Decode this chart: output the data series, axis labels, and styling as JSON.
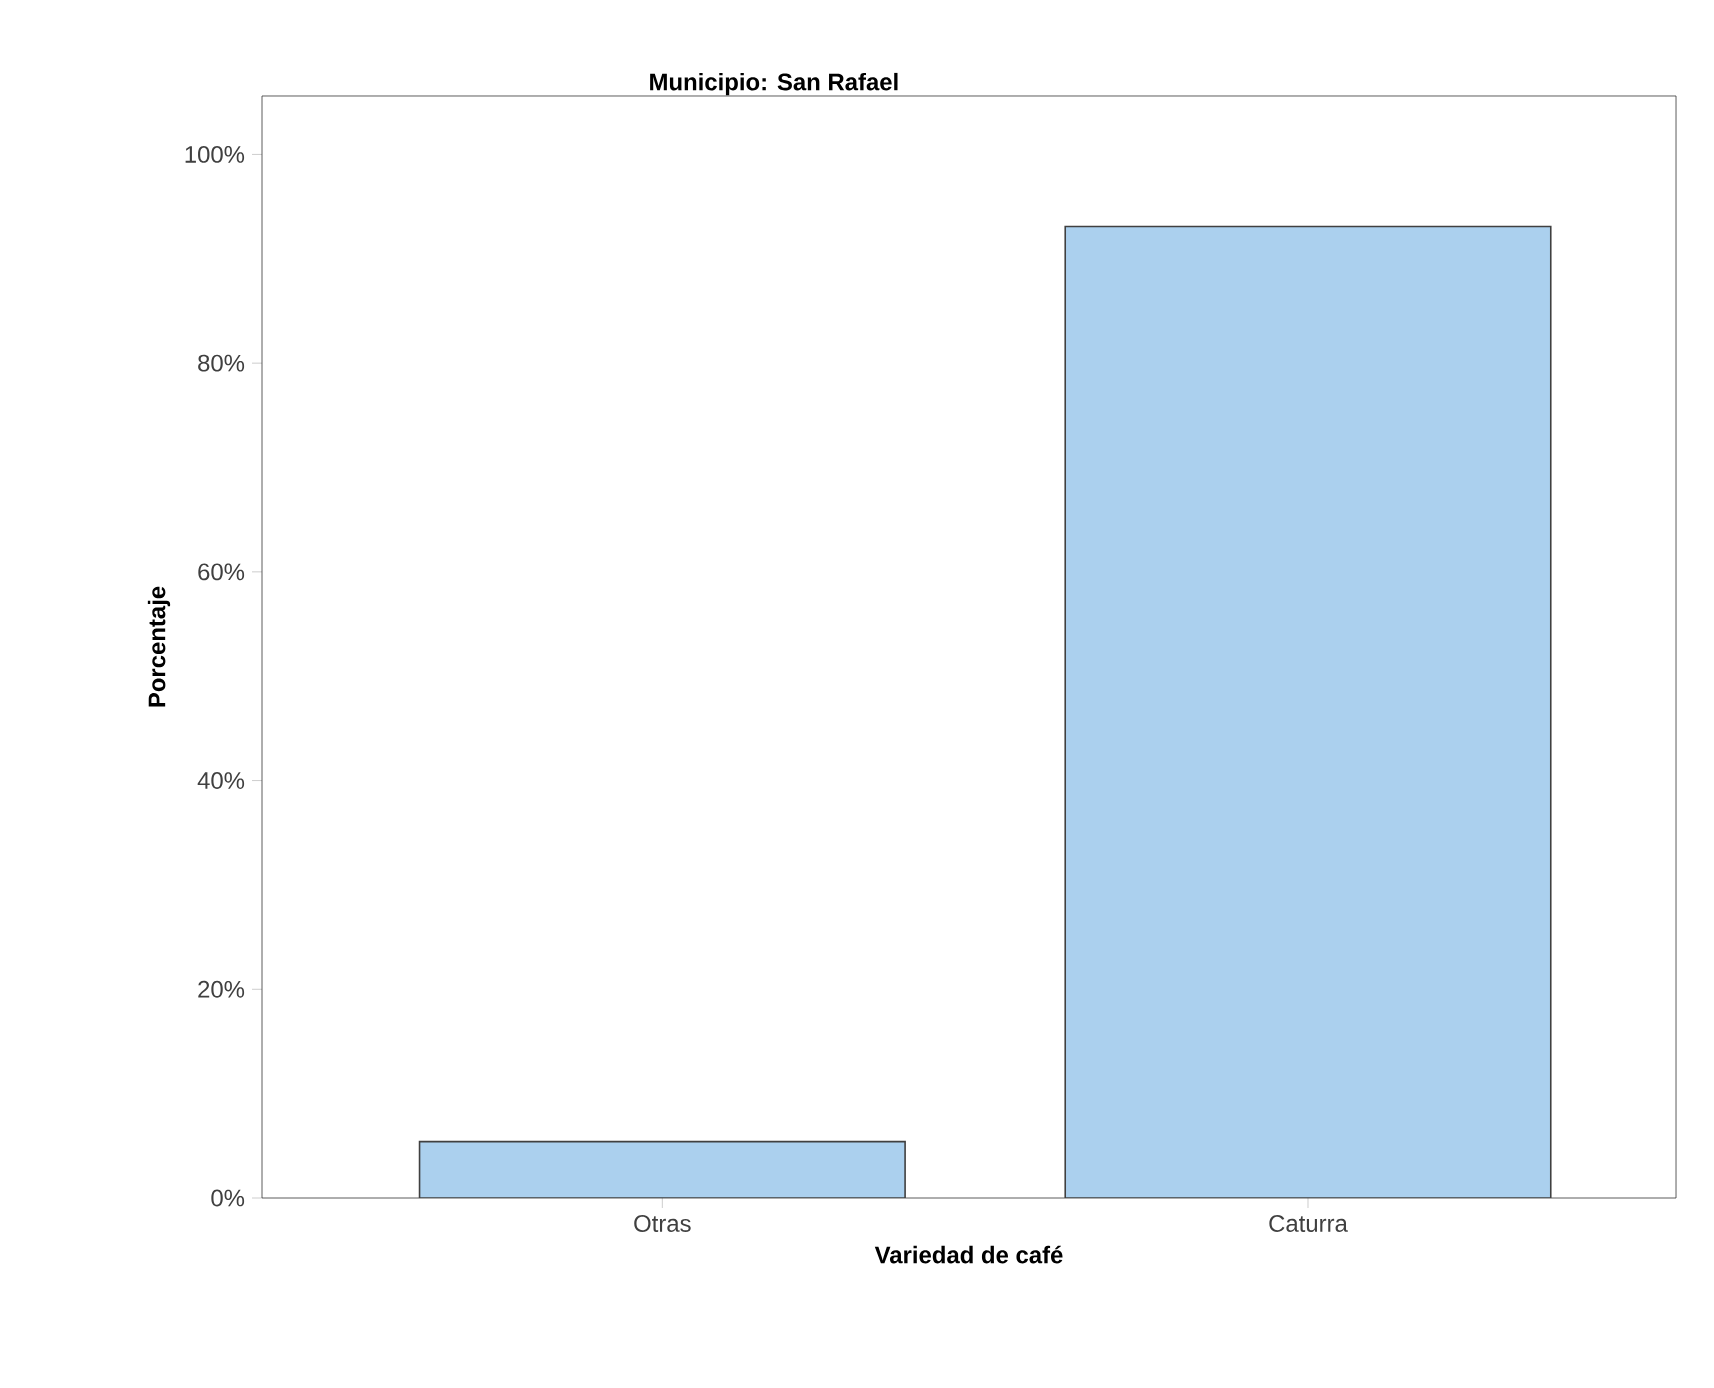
{
  "chart_data": {
    "type": "bar",
    "title": "Municipio: San Rafael",
    "xlabel": "Variedad de café",
    "ylabel": "Porcentaje",
    "categories": [
      "Otras",
      "Caturra"
    ],
    "values": [
      5.4,
      93.1
    ],
    "color": "#abd0ee",
    "ylim": [
      0,
      105.6
    ],
    "yticks": [
      {
        "value": 0,
        "label": "0%"
      },
      {
        "value": 20,
        "label": "20%"
      },
      {
        "value": 40,
        "label": "40%"
      },
      {
        "value": 60,
        "label": "60%"
      },
      {
        "value": 80,
        "label": "80%"
      },
      {
        "value": 100,
        "label": "100%"
      }
    ]
  }
}
